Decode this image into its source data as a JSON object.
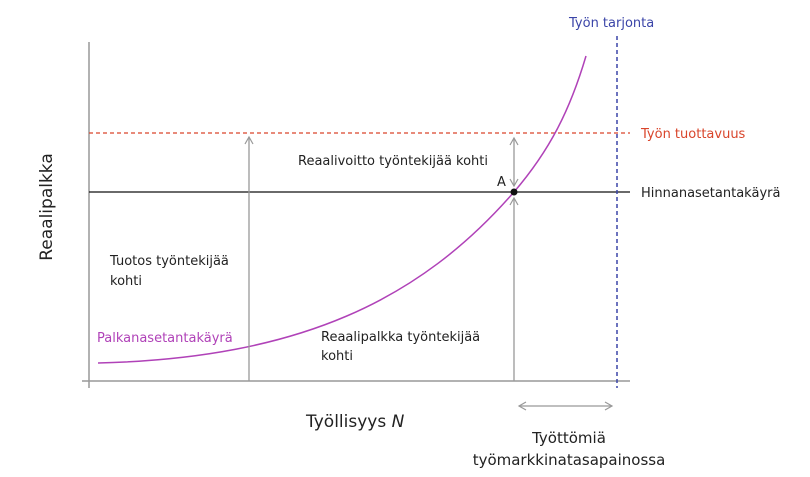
{
  "axes": {
    "y_label": "Reaalipalkka",
    "x_label_prefix": "Työllisyys ",
    "x_label_var": "N"
  },
  "lines": {
    "labor_supply": {
      "label": "Työn tarjonta",
      "color": "#3b45a8"
    },
    "labor_productivity": {
      "label": "Työn tuottavuus",
      "color": "#d9452b"
    },
    "price_setting": {
      "label": "Hinnanasetantakäyrä",
      "color": "#111111"
    },
    "wage_setting": {
      "label": "Palkanasetantakäyrä",
      "color": "#b042b8"
    }
  },
  "annotations": {
    "profit_per_worker": "Reaalivoitto työntekijää kohti",
    "output_per_worker_line1": "Tuotos työntekijää",
    "output_per_worker_line2": "kohti",
    "real_wage_line1": "Reaalipalkka työntekijää",
    "real_wage_line2": "kohti",
    "point_a": "A",
    "unemployed_line1": "Työttömiä",
    "unemployed_line2": "työmarkkinatasapainossa"
  },
  "colors": {
    "axis": "#999999",
    "arrow": "#999999"
  }
}
